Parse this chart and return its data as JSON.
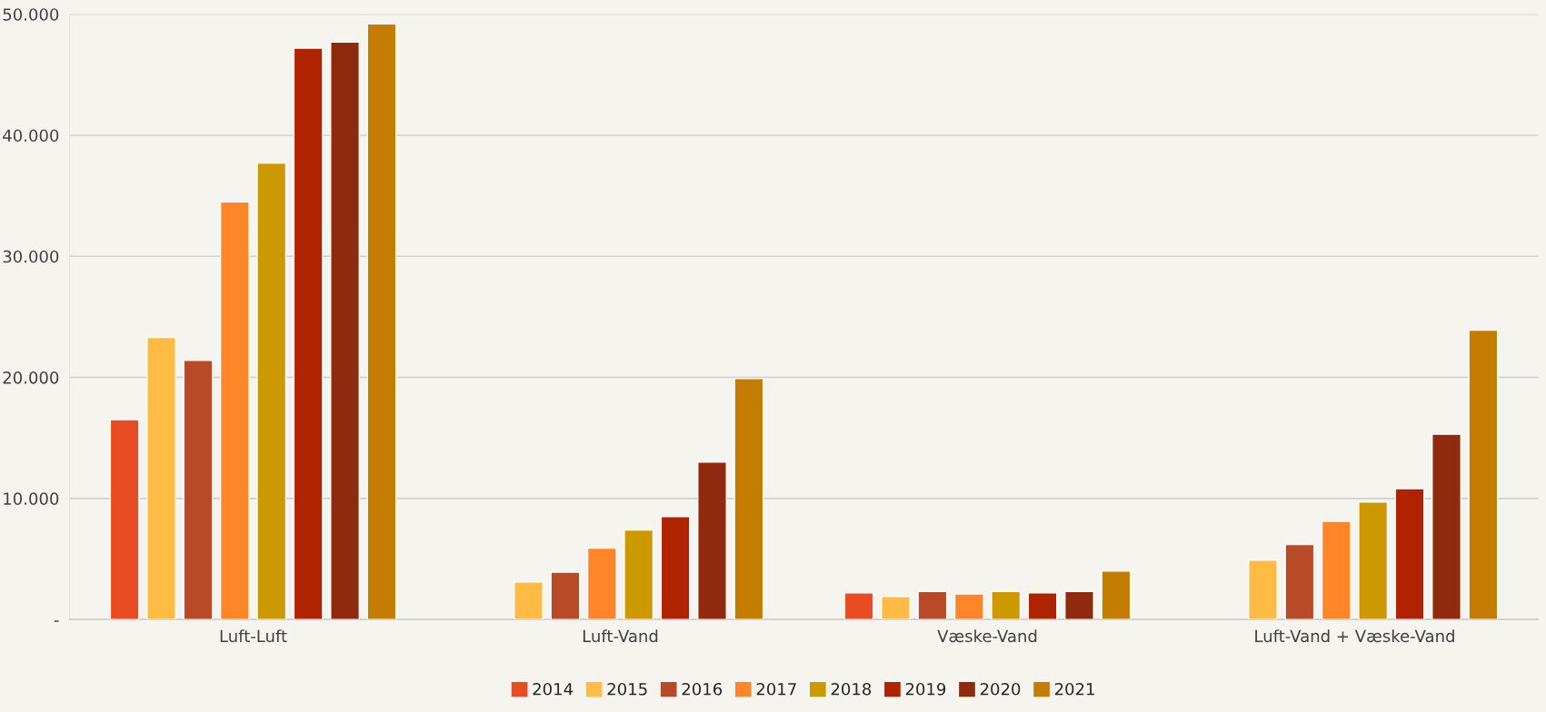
{
  "chart_data": {
    "type": "bar",
    "categories": [
      "Luft-Luft",
      "Luft-Vand",
      "Væske-Vand",
      "Luft-Vand + Væske-Vand"
    ],
    "series": [
      {
        "name": "2014",
        "color": "#e84c22",
        "values": [
          16500,
          null,
          2200,
          null
        ]
      },
      {
        "name": "2015",
        "color": "#ffbb44",
        "values": [
          23300,
          3100,
          1900,
          4900
        ]
      },
      {
        "name": "2016",
        "color": "#b84a28",
        "values": [
          21400,
          3900,
          2300,
          6200
        ]
      },
      {
        "name": "2017",
        "color": "#fe8528",
        "values": [
          34500,
          5900,
          2100,
          8100
        ]
      },
      {
        "name": "2018",
        "color": "#cc9900",
        "values": [
          37700,
          7400,
          2300,
          9700
        ]
      },
      {
        "name": "2019",
        "color": "#b02300",
        "values": [
          47200,
          8500,
          2200,
          10800
        ]
      },
      {
        "name": "2020",
        "color": "#8f2a0e",
        "values": [
          47700,
          13000,
          2300,
          15300
        ]
      },
      {
        "name": "2021",
        "color": "#c47d00",
        "values": [
          49200,
          19900,
          4000,
          23900
        ]
      }
    ],
    "ylim": [
      0,
      50000
    ],
    "yticks": [
      {
        "value": 0,
        "label": "-"
      },
      {
        "value": 10000,
        "label": "10.000"
      },
      {
        "value": 20000,
        "label": "20.000"
      },
      {
        "value": 30000,
        "label": "30.000"
      },
      {
        "value": 40000,
        "label": "40.000"
      },
      {
        "value": 50000,
        "label": "50.000"
      }
    ],
    "grid": "y",
    "legend": "bottom"
  }
}
